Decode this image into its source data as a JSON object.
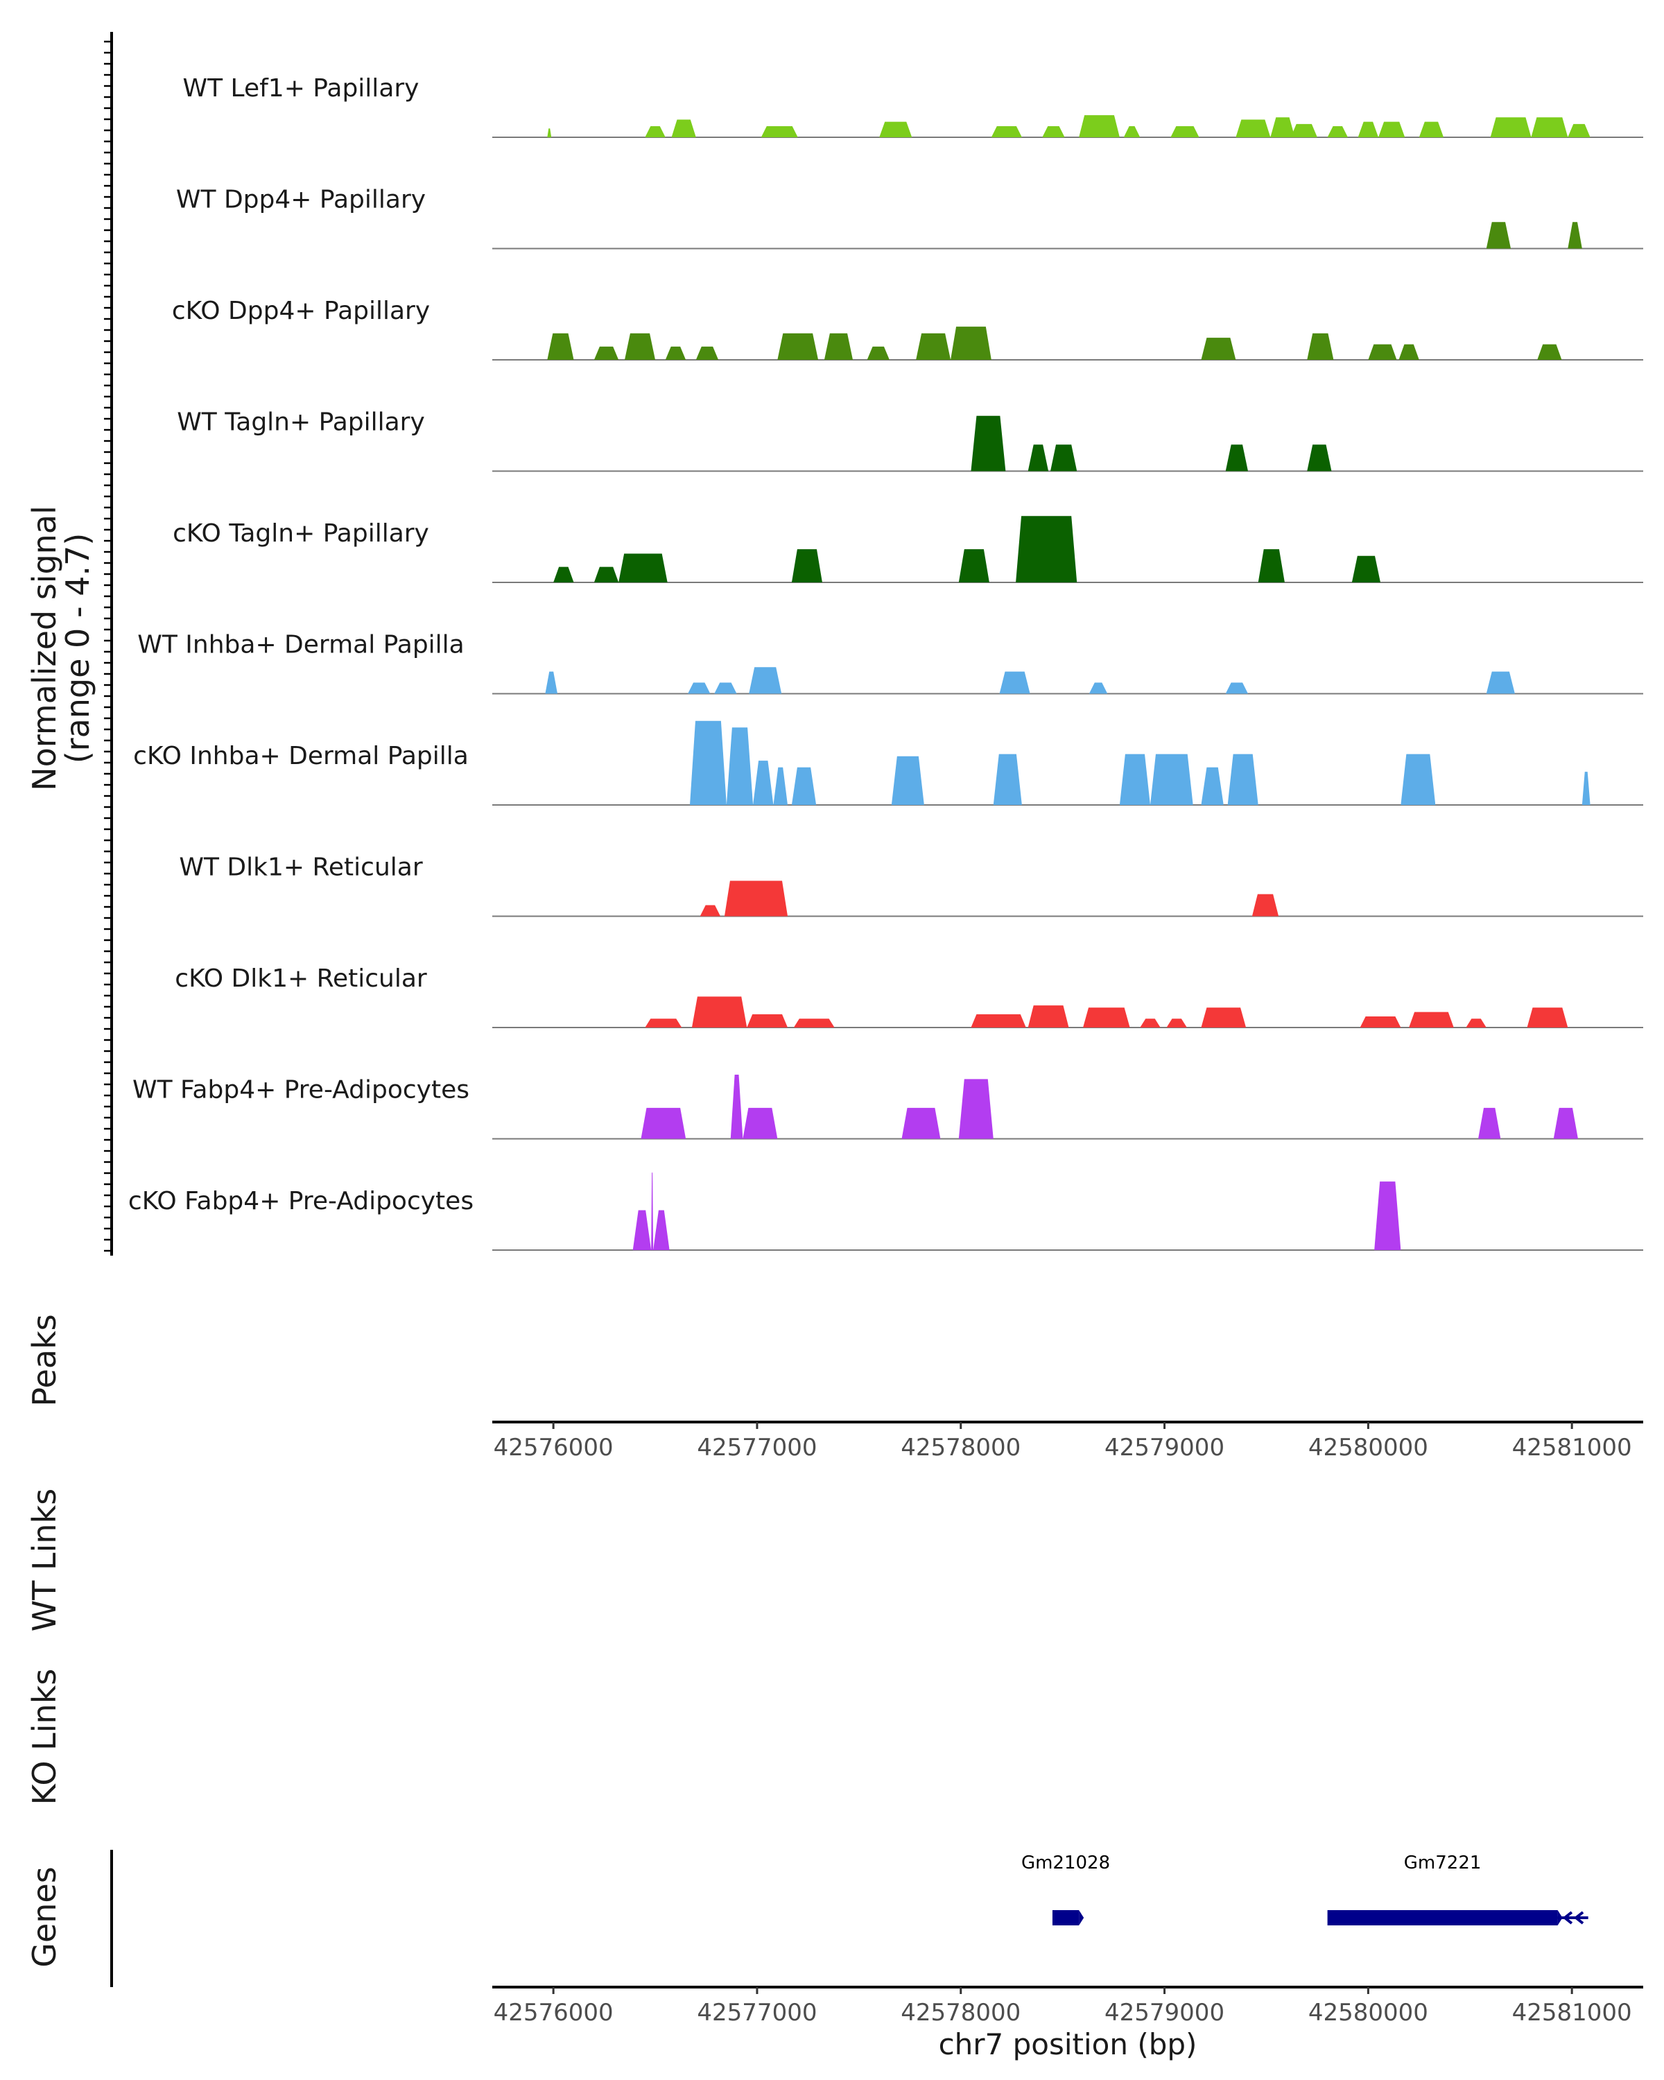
{
  "chart_data": {
    "type": "area",
    "chromosome": "chr7",
    "xlabel": "chr7 position (bp)",
    "ylabel": "Normalized signal",
    "ylabel_range": "(range 0 - 4.7)",
    "ylim": [
      0,
      4.7
    ],
    "xlim": [
      42575700,
      42581350
    ],
    "xticks": [
      42576000,
      42577000,
      42578000,
      42579000,
      42580000,
      42581000
    ],
    "xtick_labels": [
      "42576000",
      "42577000",
      "42578000",
      "42579000",
      "42580000",
      "42581000"
    ],
    "side_labels": {
      "peaks": "Peaks",
      "wt_links": "WT Links",
      "ko_links": "KO Links",
      "genes": "Genes"
    },
    "tracks": [
      {
        "name": "WT Lef1+ Papillary",
        "color": "#7ccd1c",
        "peaks": [
          [
            42575970,
            42575990,
            0.4
          ],
          [
            42576450,
            42576550,
            0.5
          ],
          [
            42576580,
            42576700,
            0.8
          ],
          [
            42577020,
            42577200,
            0.5
          ],
          [
            42577600,
            42577760,
            0.7
          ],
          [
            42578150,
            42578300,
            0.5
          ],
          [
            42578400,
            42578510,
            0.5
          ],
          [
            42578580,
            42578780,
            1.0
          ],
          [
            42578800,
            42578880,
            0.5
          ],
          [
            42579030,
            42579170,
            0.5
          ],
          [
            42579350,
            42579520,
            0.8
          ],
          [
            42579520,
            42579640,
            0.9
          ],
          [
            42579620,
            42579750,
            0.6
          ],
          [
            42579800,
            42579900,
            0.5
          ],
          [
            42579950,
            42580050,
            0.7
          ],
          [
            42580050,
            42580180,
            0.7
          ],
          [
            42580250,
            42580370,
            0.7
          ],
          [
            42580600,
            42580800,
            0.9
          ],
          [
            42580800,
            42580980,
            0.9
          ],
          [
            42580980,
            42581090,
            0.6
          ]
        ]
      },
      {
        "name": "WT Dpp4+ Papillary",
        "color": "#4a8a0e",
        "peaks": [
          [
            42580580,
            42580700,
            1.2
          ],
          [
            42580980,
            42581050,
            1.2
          ]
        ]
      },
      {
        "name": "cKO Dpp4+ Papillary",
        "color": "#4a8a0e",
        "peaks": [
          [
            42575970,
            42576100,
            1.2
          ],
          [
            42576200,
            42576320,
            0.6
          ],
          [
            42576350,
            42576500,
            1.2
          ],
          [
            42576550,
            42576650,
            0.6
          ],
          [
            42576700,
            42576810,
            0.6
          ],
          [
            42577100,
            42577300,
            1.2
          ],
          [
            42577330,
            42577470,
            1.2
          ],
          [
            42577540,
            42577650,
            0.6
          ],
          [
            42577780,
            42577950,
            1.2
          ],
          [
            42577950,
            42578150,
            1.5
          ],
          [
            42579180,
            42579350,
            1.0
          ],
          [
            42579700,
            42579830,
            1.2
          ],
          [
            42580000,
            42580140,
            0.7
          ],
          [
            42580150,
            42580250,
            0.7
          ],
          [
            42580830,
            42580950,
            0.7
          ]
        ]
      },
      {
        "name": "WT Tagln+ Papillary",
        "color": "#0b6100",
        "peaks": [
          [
            42578050,
            42578220,
            2.5
          ],
          [
            42578330,
            42578430,
            1.2
          ],
          [
            42578440,
            42578570,
            1.2
          ],
          [
            42579300,
            42579410,
            1.2
          ],
          [
            42579700,
            42579820,
            1.2
          ]
        ]
      },
      {
        "name": "cKO Tagln+ Papillary",
        "color": "#0b6100",
        "peaks": [
          [
            42576000,
            42576100,
            0.7
          ],
          [
            42576200,
            42576320,
            0.7
          ],
          [
            42576320,
            42576560,
            1.3
          ],
          [
            42577170,
            42577320,
            1.5
          ],
          [
            42577990,
            42578140,
            1.5
          ],
          [
            42578270,
            42578570,
            3.0
          ],
          [
            42579460,
            42579590,
            1.5
          ],
          [
            42579920,
            42580060,
            1.2
          ]
        ]
      },
      {
        "name": "WT Inhba+ Dermal Papilla",
        "color": "#5dade8",
        "peaks": [
          [
            42575960,
            42576020,
            1.0
          ],
          [
            42576660,
            42576770,
            0.5
          ],
          [
            42576790,
            42576900,
            0.5
          ],
          [
            42576960,
            42577120,
            1.2
          ],
          [
            42578190,
            42578340,
            1.0
          ],
          [
            42578630,
            42578720,
            0.5
          ],
          [
            42579300,
            42579410,
            0.5
          ],
          [
            42580580,
            42580720,
            1.0
          ]
        ]
      },
      {
        "name": "cKO Inhba+ Dermal Papilla",
        "color": "#5dade8",
        "peaks": [
          [
            42576670,
            42576850,
            3.8
          ],
          [
            42576850,
            42576980,
            3.5
          ],
          [
            42576980,
            42577080,
            2.0
          ],
          [
            42577080,
            42577150,
            1.7
          ],
          [
            42577170,
            42577290,
            1.7
          ],
          [
            42577660,
            42577820,
            2.2
          ],
          [
            42578160,
            42578300,
            2.3
          ],
          [
            42578780,
            42578930,
            2.3
          ],
          [
            42578930,
            42579140,
            2.3
          ],
          [
            42579180,
            42579290,
            1.7
          ],
          [
            42579310,
            42579460,
            2.3
          ],
          [
            42580160,
            42580330,
            2.3
          ],
          [
            42581050,
            42581090,
            1.5
          ]
        ]
      },
      {
        "name": "WT Dlk1+ Reticular",
        "color": "#f43838",
        "peaks": [
          [
            42576720,
            42576820,
            0.5
          ],
          [
            42576840,
            42577150,
            1.6
          ],
          [
            42579430,
            42579560,
            1.0
          ]
        ]
      },
      {
        "name": "cKO Dlk1+ Reticular",
        "color": "#f43838",
        "peaks": [
          [
            42576450,
            42576630,
            0.4
          ],
          [
            42576680,
            42576950,
            1.4
          ],
          [
            42576950,
            42577150,
            0.6
          ],
          [
            42577180,
            42577380,
            0.4
          ],
          [
            42578050,
            42578320,
            0.6
          ],
          [
            42578330,
            42578530,
            1.0
          ],
          [
            42578600,
            42578830,
            0.9
          ],
          [
            42578880,
            42578980,
            0.4
          ],
          [
            42579010,
            42579110,
            0.4
          ],
          [
            42579180,
            42579400,
            0.9
          ],
          [
            42579960,
            42580160,
            0.5
          ],
          [
            42580200,
            42580420,
            0.7
          ],
          [
            42580480,
            42580580,
            0.4
          ],
          [
            42580780,
            42580980,
            0.9
          ]
        ]
      },
      {
        "name": "WT Fabp4+ Pre-Adipocytes",
        "color": "#b33df0",
        "peaks": [
          [
            42576430,
            42576650,
            1.4
          ],
          [
            42576870,
            42576930,
            2.9
          ],
          [
            42576930,
            42577100,
            1.4
          ],
          [
            42577710,
            42577900,
            1.4
          ],
          [
            42577990,
            42578160,
            2.7
          ],
          [
            42580540,
            42580650,
            1.4
          ],
          [
            42580910,
            42581030,
            1.4
          ]
        ]
      },
      {
        "name": "cKO Fabp4+ Pre-Adipocytes",
        "color": "#b33df0",
        "peaks": [
          [
            42576390,
            42576480,
            1.8
          ],
          [
            42576480,
            42576490,
            3.5
          ],
          [
            42576490,
            42576570,
            1.8
          ],
          [
            42580030,
            42580160,
            3.1
          ]
        ]
      }
    ],
    "genes": [
      {
        "name": "Gm21028",
        "start": 42578450,
        "end": 42578580,
        "color": "#00008b"
      },
      {
        "name": "Gm7221",
        "start": 42579800,
        "end": 42580930,
        "tail_end": 42581080,
        "strand": "-",
        "color": "#00008b"
      }
    ]
  }
}
